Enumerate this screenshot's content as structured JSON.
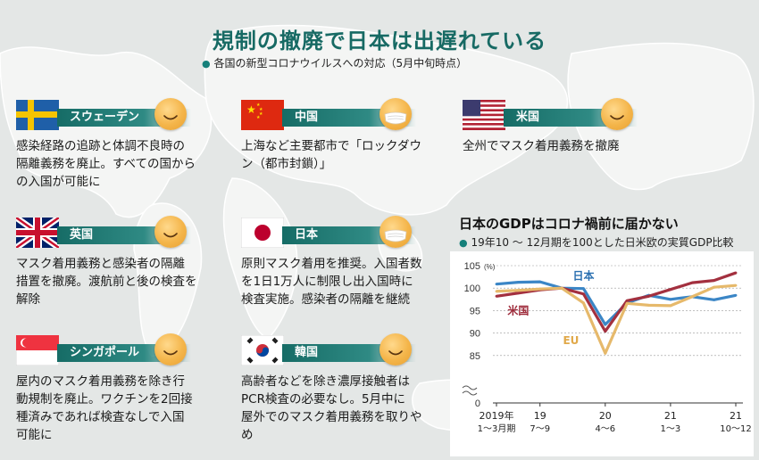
{
  "header": {
    "title": "規制の撤廃で日本は出遅れている",
    "subtitle": "各国の新型コロナウイルスへの対応（5月中旬時点）"
  },
  "countries": [
    {
      "name": "スウェーデン",
      "flag": "sweden",
      "mask": false,
      "text": [
        "感染経路の追跡と体調不良時の",
        "隔離義務を廃止。すべての国から",
        "の入国が可能に"
      ]
    },
    {
      "name": "中国",
      "flag": "china",
      "mask": true,
      "text": [
        "上海など主要都市で「ロックダウ",
        "ン（都市封鎖）」"
      ]
    },
    {
      "name": "米国",
      "flag": "usa",
      "mask": false,
      "text": [
        "全州でマスク着用義務を撤廃"
      ]
    },
    {
      "name": "英国",
      "flag": "uk",
      "mask": false,
      "text": [
        "マスク着用義務と感染者の隔離",
        "措置を撤廃。渡航前と後の検査を",
        "解除"
      ]
    },
    {
      "name": "日本",
      "flag": "japan",
      "mask": true,
      "text": [
        "原則マスク着用を推奨。入国者数",
        "を1日1万人に制限し出入国時に",
        "検査実施。感染者の隔離を継続"
      ]
    },
    {
      "name": "シンガポール",
      "flag": "singapore",
      "mask": false,
      "text": [
        "屋内のマスク着用義務を除き行",
        "動規制を廃止。ワクチンを2回接",
        "種済みであれば検査なしで入国",
        "可能に"
      ]
    },
    {
      "name": "韓国",
      "flag": "korea",
      "mask": false,
      "text": [
        "高齢者などを除き濃厚接触者は",
        "PCR検査の必要なし。5月中に",
        "屋外でのマスク着用義務を取りや",
        "め"
      ]
    }
  ],
  "colors": {
    "teal": "#176a64",
    "face": "#f4b54a",
    "japan_line": "#3b86c6",
    "us_line": "#a3303f",
    "eu_line": "#e6b96b"
  },
  "chart_data": {
    "type": "line",
    "title": "日本のGDPはコロナ禍前に届かない",
    "subtitle": "19年10 ～ 12月期を100とした日米欧の実質GDP比較",
    "ylabel_unit": "(%)",
    "ylim": [
      80,
      105
    ],
    "yticks": [
      0,
      85,
      90,
      95,
      100,
      105
    ],
    "y_break": true,
    "x": [
      "2019年1～3月期",
      "2019年4～6月期",
      "2019年7～9月期",
      "2019年10～12月期",
      "2020年1～3月期",
      "2020年4～6月期",
      "2020年7～9月期",
      "2020年10～12月期",
      "2021年1～3月期",
      "2021年4～6月期",
      "2021年7～9月期",
      "2021年10～12月期"
    ],
    "xtick_labels": [
      {
        "top": "2019年",
        "bottom": "1～3月期"
      },
      {
        "top": "19",
        "bottom": "7～9"
      },
      {
        "top": "20",
        "bottom": "4～6"
      },
      {
        "top": "21",
        "bottom": "1～3"
      },
      {
        "top": "21",
        "bottom": "10～12"
      }
    ],
    "series": [
      {
        "name": "日本",
        "color": "#3b86c6",
        "values": [
          100.9,
          101.3,
          101.4,
          100.0,
          99.9,
          91.9,
          96.7,
          98.4,
          97.5,
          98.1,
          97.4,
          98.4
        ]
      },
      {
        "name": "米国",
        "color": "#a3303f",
        "values": [
          98.2,
          98.9,
          99.6,
          100.0,
          98.7,
          90.4,
          97.2,
          98.2,
          99.7,
          101.2,
          101.7,
          103.4
        ]
      },
      {
        "name": "EU",
        "color": "#e6b96b",
        "values": [
          99.3,
          99.5,
          99.8,
          100.0,
          96.7,
          85.5,
          96.6,
          96.2,
          96.1,
          98.1,
          100.2,
          100.6
        ]
      }
    ]
  }
}
